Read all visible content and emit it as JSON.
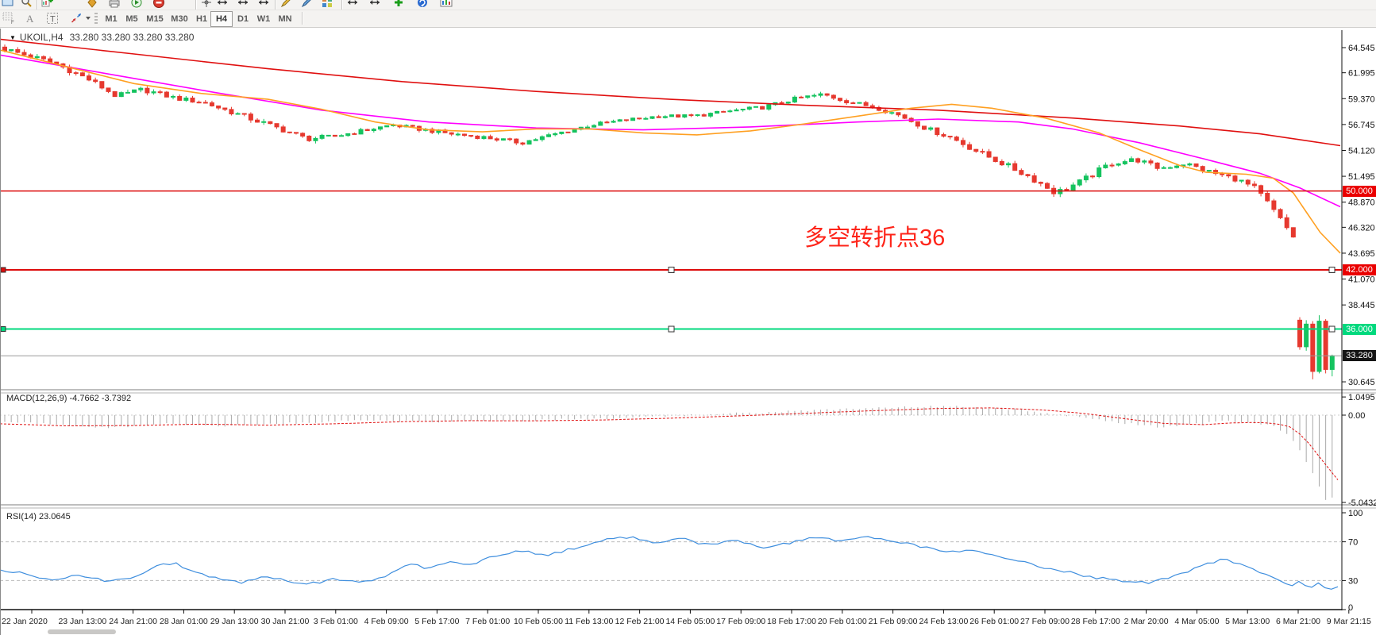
{
  "toolbar": {
    "row1_icons": [
      "window-icon",
      "magnifier-icon",
      "sep",
      "new-chart-icon",
      "order-basket-icon",
      "print-icon",
      "print-preview-icon",
      "stop-icon",
      "sep",
      "crosshair-icon",
      "h-resize-icon",
      "h-resize-icon",
      "h-resize-icon",
      "sep",
      "pencil-icon",
      "pen-icon",
      "palette-icon",
      "sep",
      "h-resize-icon",
      "h-resize-icon",
      "add-indicator-icon",
      "refresh-icon",
      "chart-box-icon"
    ],
    "row2_tools": [
      "grid-f-icon",
      "letter-a-icon",
      "text-t-icon",
      "arrows-tool-icon"
    ],
    "timeframes": [
      "M1",
      "M5",
      "M15",
      "M30",
      "H1",
      "H4",
      "D1",
      "W1",
      "MN"
    ],
    "active_timeframe": "H4"
  },
  "chart": {
    "title": {
      "symbol": "UKOIL,H4",
      "ohlc": "33.280 33.280 33.280 33.280"
    },
    "annotation": {
      "text": "多空转折点36",
      "color": "#fe2419"
    },
    "hlines": [
      {
        "price": 50.0,
        "badge": "50.000",
        "color": "#dd0c0c",
        "width": 1.5,
        "handles": false,
        "badge_bg": "#ea0000",
        "name": "resistance-line-50"
      },
      {
        "price": 42.0,
        "badge": "42.000",
        "color": "#dd0c0c",
        "width": 2,
        "handles": true,
        "badge_bg": "#ea0000",
        "name": "support-line-42"
      },
      {
        "price": 36.0,
        "badge": "36.000",
        "color": "#00d97e",
        "width": 2,
        "handles": true,
        "badge_bg": "#00d97e",
        "name": "target-line-36"
      },
      {
        "price": 33.28,
        "badge": "33.280",
        "color": "#9a9a9a",
        "width": 1,
        "handles": false,
        "badge_bg": "#141414",
        "name": "current-price-line"
      }
    ]
  },
  "chart_data": {
    "type": "candlestick",
    "symbol": "UKOIL",
    "timeframe": "H4",
    "title": "UKOIL,H4",
    "current_ohlc": [
      33.28,
      33.28,
      33.28,
      33.28
    ],
    "price_axis": {
      "top": 64.545,
      "step": 2.625,
      "labels": [
        {
          "t": "64.545",
          "p": 64.545
        },
        {
          "t": "61.995",
          "p": 61.995
        },
        {
          "t": "59.370",
          "p": 59.37
        },
        {
          "t": "56.745",
          "p": 56.745
        },
        {
          "t": "54.120",
          "p": 54.12
        },
        {
          "t": "51.495",
          "p": 51.495
        },
        {
          "t": "48.870",
          "p": 48.87
        },
        {
          "t": "46.320",
          "p": 46.32
        },
        {
          "t": "43.695",
          "p": 43.695
        },
        {
          "t": "41.070",
          "p": 41.07
        },
        {
          "t": "38.445",
          "p": 38.445
        },
        {
          "t": "30.645",
          "p": 30.645
        }
      ]
    },
    "x_labels": [
      "22 Jan 2020",
      "23 Jan 13:00",
      "24 Jan 21:00",
      "28 Jan 01:00",
      "29 Jan 13:00",
      "30 Jan 21:00",
      "3 Feb 01:00",
      "4 Feb 09:00",
      "5 Feb 17:00",
      "7 Feb 01:00",
      "10 Feb 05:00",
      "11 Feb 13:00",
      "12 Feb 21:00",
      "14 Feb 05:00",
      "17 Feb 09:00",
      "18 Feb 17:00",
      "20 Feb 01:00",
      "21 Feb 09:00",
      "24 Feb 13:00",
      "26 Feb 01:00",
      "27 Feb 09:00",
      "28 Feb 17:00",
      "2 Mar 20:00",
      "4 Mar 05:00",
      "5 Mar 13:00",
      "6 Mar 21:00",
      "9 Mar 21:15"
    ],
    "price_path": [
      [
        0,
        64.4,
        0.5
      ],
      [
        0.04,
        62.9,
        0.5
      ],
      [
        0.067,
        61.2,
        0.45
      ],
      [
        0.087,
        59.6,
        0.5
      ],
      [
        0.107,
        60.3,
        0.45
      ],
      [
        0.133,
        59.4,
        0.4
      ],
      [
        0.154,
        59.0,
        0.4
      ],
      [
        0.174,
        58.1,
        0.45
      ],
      [
        0.194,
        57.2,
        0.5
      ],
      [
        0.214,
        56.3,
        0.45
      ],
      [
        0.234,
        55.3,
        0.5
      ],
      [
        0.254,
        55.5,
        0.4
      ],
      [
        0.281,
        56.2,
        0.35
      ],
      [
        0.301,
        56.7,
        0.35
      ],
      [
        0.321,
        56.3,
        0.35
      ],
      [
        0.347,
        55.8,
        0.35
      ],
      [
        0.375,
        55.4,
        0.35
      ],
      [
        0.401,
        54.9,
        0.4
      ],
      [
        0.428,
        55.8,
        0.35
      ],
      [
        0.455,
        56.7,
        0.35
      ],
      [
        0.482,
        57.2,
        0.3
      ],
      [
        0.508,
        57.6,
        0.3
      ],
      [
        0.535,
        57.6,
        0.3
      ],
      [
        0.562,
        58.1,
        0.3
      ],
      [
        0.589,
        58.5,
        0.35
      ],
      [
        0.615,
        59.4,
        0.35
      ],
      [
        0.635,
        59.8,
        0.35
      ],
      [
        0.656,
        59.0,
        0.35
      ],
      [
        0.676,
        58.5,
        0.4
      ],
      [
        0.696,
        57.6,
        0.4
      ],
      [
        0.716,
        56.3,
        0.45
      ],
      [
        0.735,
        55.4,
        0.45
      ],
      [
        0.755,
        54.0,
        0.5
      ],
      [
        0.776,
        52.7,
        0.5
      ],
      [
        0.796,
        51.4,
        0.55
      ],
      [
        0.816,
        49.8,
        0.6
      ],
      [
        0.836,
        51.0,
        0.55
      ],
      [
        0.858,
        52.8,
        0.5
      ],
      [
        0.878,
        53.2,
        0.45
      ],
      [
        0.896,
        52.3,
        0.45
      ],
      [
        0.916,
        52.8,
        0.45
      ],
      [
        0.936,
        51.9,
        0.45
      ],
      [
        0.956,
        51.2,
        0.45
      ],
      [
        0.97,
        50.3,
        0.5
      ],
      [
        0.982,
        48.5,
        0.6
      ],
      [
        0.991,
        46.9,
        0.6
      ],
      [
        1,
        45.4,
        0.6
      ]
    ],
    "final_candles": [
      [
        36.9,
        37.2,
        33.9,
        34.2
      ],
      [
        34.2,
        36.9,
        33.8,
        36.5
      ],
      [
        36.5,
        36.8,
        30.9,
        31.7
      ],
      [
        31.7,
        37.4,
        31.5,
        36.8
      ],
      [
        36.8,
        37.0,
        31.5,
        31.9
      ],
      [
        31.9,
        33.4,
        31.2,
        33.28
      ]
    ],
    "ma": {
      "red": [
        [
          0,
          65.4
        ],
        [
          0.1,
          63.9
        ],
        [
          0.2,
          62.4
        ],
        [
          0.3,
          61.1
        ],
        [
          0.4,
          60.1
        ],
        [
          0.5,
          59.3
        ],
        [
          0.6,
          58.7
        ],
        [
          0.7,
          58.2
        ],
        [
          0.8,
          57.4
        ],
        [
          0.88,
          56.6
        ],
        [
          0.94,
          55.8
        ],
        [
          1,
          54.6
        ]
      ],
      "magenta": [
        [
          0,
          63.8
        ],
        [
          0.08,
          61.9
        ],
        [
          0.16,
          60.0
        ],
        [
          0.24,
          58.2
        ],
        [
          0.32,
          57.0
        ],
        [
          0.4,
          56.4
        ],
        [
          0.48,
          56.2
        ],
        [
          0.56,
          56.5
        ],
        [
          0.64,
          57.0
        ],
        [
          0.7,
          57.3
        ],
        [
          0.76,
          57.0
        ],
        [
          0.8,
          56.3
        ],
        [
          0.85,
          54.9
        ],
        [
          0.9,
          53.2
        ],
        [
          0.94,
          51.8
        ],
        [
          0.97,
          50.3
        ],
        [
          1,
          48.4
        ]
      ],
      "orange": [
        [
          0,
          64.3
        ],
        [
          0.05,
          62.6
        ],
        [
          0.1,
          60.9
        ],
        [
          0.15,
          59.9
        ],
        [
          0.2,
          59.3
        ],
        [
          0.24,
          58.3
        ],
        [
          0.28,
          57.0
        ],
        [
          0.32,
          56.2
        ],
        [
          0.36,
          56.0
        ],
        [
          0.4,
          56.3
        ],
        [
          0.44,
          56.3
        ],
        [
          0.48,
          55.9
        ],
        [
          0.52,
          55.7
        ],
        [
          0.56,
          56.1
        ],
        [
          0.6,
          56.8
        ],
        [
          0.64,
          57.6
        ],
        [
          0.68,
          58.4
        ],
        [
          0.71,
          58.8
        ],
        [
          0.74,
          58.4
        ],
        [
          0.78,
          57.4
        ],
        [
          0.82,
          55.9
        ],
        [
          0.85,
          54.2
        ],
        [
          0.88,
          52.6
        ],
        [
          0.9,
          51.9
        ],
        [
          0.93,
          51.7
        ],
        [
          0.95,
          51.3
        ],
        [
          0.965,
          49.8
        ],
        [
          0.975,
          47.8
        ],
        [
          0.985,
          45.8
        ],
        [
          1,
          43.7
        ]
      ]
    },
    "macd": {
      "label": "MACD(12,26,9)",
      "values": "-4.7662 -3.7392",
      "scale": [
        "1.0495",
        "0.00",
        "-5.0432"
      ],
      "scale_vals": [
        1.0495,
        0.0,
        -5.0432
      ],
      "hist": [
        [
          0,
          -0.35
        ],
        [
          0.04,
          -0.55
        ],
        [
          0.08,
          -0.72
        ],
        [
          0.12,
          -0.5
        ],
        [
          0.16,
          -0.62
        ],
        [
          0.2,
          -0.52
        ],
        [
          0.24,
          -0.38
        ],
        [
          0.28,
          -0.3
        ],
        [
          0.32,
          -0.38
        ],
        [
          0.36,
          -0.33
        ],
        [
          0.4,
          -0.28
        ],
        [
          0.44,
          -0.22
        ],
        [
          0.48,
          -0.12
        ],
        [
          0.52,
          0.0
        ],
        [
          0.56,
          0.12
        ],
        [
          0.6,
          0.25
        ],
        [
          0.64,
          0.38
        ],
        [
          0.68,
          0.48
        ],
        [
          0.72,
          0.5
        ],
        [
          0.75,
          0.4
        ],
        [
          0.78,
          0.18
        ],
        [
          0.81,
          -0.1
        ],
        [
          0.84,
          -0.45
        ],
        [
          0.87,
          -0.68
        ],
        [
          0.9,
          -0.5
        ],
        [
          0.92,
          -0.32
        ],
        [
          0.94,
          -0.42
        ],
        [
          0.955,
          -0.6
        ],
        [
          0.965,
          -1.0
        ],
        [
          0.972,
          -1.6
        ],
        [
          0.98,
          -2.6
        ],
        [
          0.988,
          -3.8
        ],
        [
          0.996,
          -5.0
        ],
        [
          1,
          -4.77
        ]
      ],
      "signal": [
        [
          0,
          -0.5
        ],
        [
          0.05,
          -0.62
        ],
        [
          0.1,
          -0.6
        ],
        [
          0.15,
          -0.52
        ],
        [
          0.2,
          -0.58
        ],
        [
          0.25,
          -0.5
        ],
        [
          0.3,
          -0.38
        ],
        [
          0.35,
          -0.32
        ],
        [
          0.4,
          -0.33
        ],
        [
          0.45,
          -0.28
        ],
        [
          0.5,
          -0.18
        ],
        [
          0.55,
          -0.05
        ],
        [
          0.6,
          0.1
        ],
        [
          0.65,
          0.25
        ],
        [
          0.7,
          0.38
        ],
        [
          0.74,
          0.42
        ],
        [
          0.78,
          0.3
        ],
        [
          0.81,
          0.1
        ],
        [
          0.84,
          -0.2
        ],
        [
          0.87,
          -0.48
        ],
        [
          0.9,
          -0.55
        ],
        [
          0.92,
          -0.45
        ],
        [
          0.94,
          -0.42
        ],
        [
          0.955,
          -0.5
        ],
        [
          0.965,
          -0.7
        ],
        [
          0.975,
          -1.3
        ],
        [
          0.985,
          -2.3
        ],
        [
          1,
          -3.74
        ]
      ]
    },
    "rsi": {
      "label": "RSI(14)",
      "value": "23.0645",
      "scale": [
        "100",
        "70",
        "30",
        "0"
      ],
      "levels": [
        70,
        30
      ],
      "path": [
        [
          0,
          42
        ],
        [
          0.02,
          36
        ],
        [
          0.04,
          31
        ],
        [
          0.06,
          35
        ],
        [
          0.08,
          30
        ],
        [
          0.1,
          34
        ],
        [
          0.115,
          44
        ],
        [
          0.13,
          48
        ],
        [
          0.145,
          40
        ],
        [
          0.16,
          33
        ],
        [
          0.18,
          28
        ],
        [
          0.2,
          34
        ],
        [
          0.215,
          29
        ],
        [
          0.23,
          26
        ],
        [
          0.25,
          32
        ],
        [
          0.27,
          28
        ],
        [
          0.29,
          36
        ],
        [
          0.305,
          47
        ],
        [
          0.32,
          43
        ],
        [
          0.335,
          50
        ],
        [
          0.35,
          46
        ],
        [
          0.37,
          55
        ],
        [
          0.39,
          61
        ],
        [
          0.41,
          56
        ],
        [
          0.43,
          64
        ],
        [
          0.45,
          71
        ],
        [
          0.47,
          75
        ],
        [
          0.49,
          69
        ],
        [
          0.51,
          73
        ],
        [
          0.53,
          66
        ],
        [
          0.55,
          71
        ],
        [
          0.57,
          64
        ],
        [
          0.59,
          69
        ],
        [
          0.61,
          74
        ],
        [
          0.63,
          70
        ],
        [
          0.65,
          75
        ],
        [
          0.67,
          71
        ],
        [
          0.69,
          65
        ],
        [
          0.71,
          59
        ],
        [
          0.725,
          63
        ],
        [
          0.74,
          57
        ],
        [
          0.76,
          50
        ],
        [
          0.78,
          44
        ],
        [
          0.8,
          38
        ],
        [
          0.82,
          33
        ],
        [
          0.84,
          29
        ],
        [
          0.86,
          27
        ],
        [
          0.88,
          36
        ],
        [
          0.9,
          46
        ],
        [
          0.915,
          52
        ],
        [
          0.93,
          45
        ],
        [
          0.945,
          38
        ],
        [
          0.955,
          31
        ],
        [
          0.965,
          25
        ],
        [
          0.972,
          30
        ],
        [
          0.979,
          22
        ],
        [
          0.986,
          27
        ],
        [
          0.993,
          20
        ],
        [
          1,
          23.1
        ]
      ]
    },
    "colors": {
      "up": "#15c35f",
      "down": "#e6392f",
      "ma_red": "#e01010",
      "ma_magenta": "#ff00ff",
      "ma_orange": "#ffa022",
      "macd_hist": "#a9a9a9",
      "macd_signal": "#e01010",
      "rsi": "#3e8ede"
    }
  }
}
